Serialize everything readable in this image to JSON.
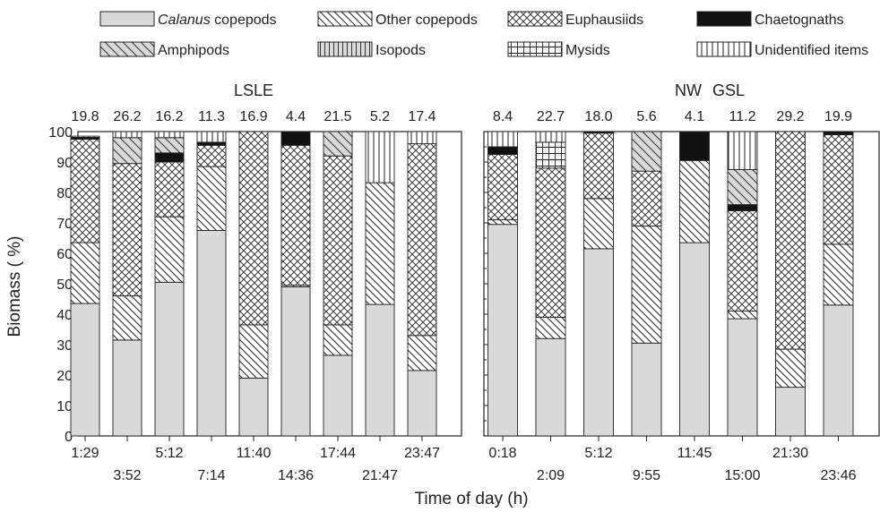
{
  "chart_data": {
    "type": "bar",
    "stacked": true,
    "xlabel": "Time of day (h)",
    "ylabel": "Biomass ( %)",
    "ylim": [
      0,
      100
    ],
    "yticks": [
      0,
      10,
      20,
      30,
      40,
      50,
      60,
      70,
      80,
      90,
      100
    ],
    "legend_placement": "top",
    "legend": [
      {
        "key": "calanus",
        "label_italic": "Calanus",
        "label_rest": " copepods",
        "pattern": "solid-gray"
      },
      {
        "key": "other_copepods",
        "label": "Other copepods",
        "pattern": "diagonal-down"
      },
      {
        "key": "euphausiids",
        "label": "Euphausiids",
        "pattern": "crosshatch"
      },
      {
        "key": "chaetognaths",
        "label": "Chaetognaths",
        "pattern": "solid-black"
      },
      {
        "key": "amphipods",
        "label": "Amphipods",
        "pattern": "gray-diagonal"
      },
      {
        "key": "isopods",
        "label": "Isopods",
        "pattern": "gray-vertical"
      },
      {
        "key": "mysids",
        "label": "Mysids",
        "pattern": "grid"
      },
      {
        "key": "unidentified",
        "label": "Unidentified items",
        "pattern": "vertical"
      }
    ],
    "panels": [
      {
        "title": "LSLE",
        "bars": [
          {
            "time": "1:29",
            "total": "19.8",
            "segments": {
              "calanus": 43.5,
              "other_copepods": 20,
              "euphausiids": 34,
              "chaetognaths": 0.6,
              "unidentified": 0.4
            }
          },
          {
            "time": "3:52",
            "total": "26.2",
            "segments": {
              "calanus": 31.5,
              "other_copepods": 14.5,
              "euphausiids": 43.5,
              "amphipods": 8.5,
              "unidentified": 2
            }
          },
          {
            "time": "5:12",
            "total": "16.2",
            "segments": {
              "calanus": 50.5,
              "other_copepods": 21.5,
              "euphausiids": 18,
              "chaetognaths": 3,
              "amphipods": 5,
              "unidentified": 2
            }
          },
          {
            "time": "7:14",
            "total": "11.3",
            "segments": {
              "calanus": 67.5,
              "other_copepods": 21,
              "euphausiids": 7,
              "chaetognaths": 1,
              "unidentified": 3.5
            }
          },
          {
            "time": "11:40",
            "total": "16.9",
            "segments": {
              "calanus": 19,
              "other_copepods": 17.5,
              "euphausiids": 63.5
            }
          },
          {
            "time": "14:36",
            "total": "4.4",
            "segments": {
              "calanus": 49,
              "other_copepods": 0.5,
              "euphausiids": 46,
              "chaetognaths": 4.5
            }
          },
          {
            "time": "17:44",
            "total": "21.5",
            "segments": {
              "calanus": 26.5,
              "other_copepods": 10,
              "euphausiids": 55.5,
              "amphipods": 8
            }
          },
          {
            "time": "21:47",
            "total": "5.2",
            "segments": {
              "calanus": 43.2,
              "other_copepods": 40,
              "unidentified": 16.8
            }
          },
          {
            "time": "23:47",
            "total": "17.4",
            "segments": {
              "calanus": 21.5,
              "other_copepods": 11.5,
              "euphausiids": 63,
              "unidentified": 4
            }
          }
        ]
      },
      {
        "title": "NW GSL",
        "bars": [
          {
            "time": "0:18",
            "total": "8.4",
            "segments": {
              "calanus": 69.5,
              "other_copepods": 1.5,
              "euphausiids": 21.5,
              "chaetognaths": 2.5,
              "unidentified": 5
            }
          },
          {
            "time": "2:09",
            "total": "22.7",
            "segments": {
              "calanus": 32,
              "other_copepods": 7,
              "euphausiids": 49,
              "mysids": 8.5,
              "unidentified": 3.5
            }
          },
          {
            "time": "5:12",
            "total": "18.0",
            "segments": {
              "calanus": 61.5,
              "other_copepods": 16.5,
              "euphausiids": 21.5,
              "chaetognaths": 0.5
            }
          },
          {
            "time": "9:55",
            "total": "5.6",
            "segments": {
              "calanus": 30.5,
              "other_copepods": 38.5,
              "euphausiids": 18,
              "amphipods": 13
            }
          },
          {
            "time": "11:45",
            "total": "4.1",
            "segments": {
              "calanus": 63.5,
              "other_copepods": 27,
              "chaetognaths": 9.5
            }
          },
          {
            "time": "15:00",
            "total": "11.2",
            "segments": {
              "calanus": 38.5,
              "other_copepods": 2.5,
              "euphausiids": 33,
              "chaetognaths": 2,
              "amphipods": 11.5,
              "unidentified": 12.5
            }
          },
          {
            "time": "21:30",
            "total": "29.2",
            "segments": {
              "calanus": 16,
              "other_copepods": 12.5,
              "euphausiids": 71.5
            }
          },
          {
            "time": "23:46",
            "total": "19.9",
            "segments": {
              "calanus": 43,
              "other_copepods": 20,
              "euphausiids": 36,
              "chaetognaths": 1
            }
          }
        ]
      }
    ]
  }
}
